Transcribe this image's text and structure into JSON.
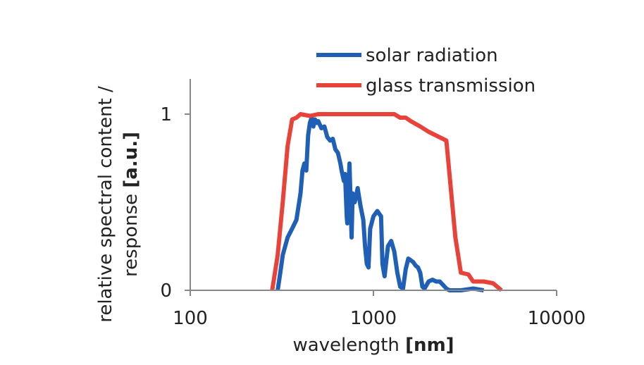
{
  "chart_data": {
    "type": "line",
    "title": "",
    "xlabel": "wavelength",
    "xlabel_unit": "[nm]",
    "ylabel": "relative spectral content /",
    "ylabel_line2": "response",
    "ylabel_unit": "[a.u.]",
    "xscale": "log",
    "xlim": [
      100,
      10000
    ],
    "ylim": [
      0,
      1.2
    ],
    "x_ticks": [
      "100",
      "1000",
      "10000"
    ],
    "y_ticks": [
      "0",
      "1"
    ],
    "grid": false,
    "legend_position": "top",
    "series": [
      {
        "name": "solar radiation",
        "color": "#1f5fb5",
        "points": [
          [
            300,
            0.0
          ],
          [
            310,
            0.1
          ],
          [
            320,
            0.2
          ],
          [
            340,
            0.3
          ],
          [
            360,
            0.35
          ],
          [
            380,
            0.4
          ],
          [
            400,
            0.55
          ],
          [
            410,
            0.68
          ],
          [
            420,
            0.72
          ],
          [
            430,
            0.68
          ],
          [
            440,
            0.88
          ],
          [
            450,
            0.95
          ],
          [
            460,
            0.98
          ],
          [
            470,
            0.93
          ],
          [
            480,
            0.97
          ],
          [
            490,
            0.95
          ],
          [
            500,
            0.96
          ],
          [
            520,
            0.92
          ],
          [
            540,
            0.93
          ],
          [
            560,
            0.87
          ],
          [
            580,
            0.85
          ],
          [
            600,
            0.86
          ],
          [
            620,
            0.8
          ],
          [
            640,
            0.78
          ],
          [
            660,
            0.72
          ],
          [
            670,
            0.68
          ],
          [
            690,
            0.62
          ],
          [
            700,
            0.66
          ],
          [
            715,
            0.42
          ],
          [
            720,
            0.38
          ],
          [
            730,
            0.57
          ],
          [
            740,
            0.72
          ],
          [
            760,
            0.3
          ],
          [
            770,
            0.55
          ],
          [
            790,
            0.5
          ],
          [
            810,
            0.55
          ],
          [
            820,
            0.58
          ],
          [
            850,
            0.48
          ],
          [
            880,
            0.4
          ],
          [
            900,
            0.25
          ],
          [
            920,
            0.15
          ],
          [
            940,
            0.13
          ],
          [
            960,
            0.35
          ],
          [
            1000,
            0.42
          ],
          [
            1050,
            0.45
          ],
          [
            1100,
            0.42
          ],
          [
            1120,
            0.15
          ],
          [
            1150,
            0.08
          ],
          [
            1200,
            0.25
          ],
          [
            1250,
            0.28
          ],
          [
            1300,
            0.22
          ],
          [
            1350,
            0.1
          ],
          [
            1400,
            0.02
          ],
          [
            1450,
            0.01
          ],
          [
            1500,
            0.12
          ],
          [
            1550,
            0.18
          ],
          [
            1600,
            0.17
          ],
          [
            1650,
            0.16
          ],
          [
            1700,
            0.14
          ],
          [
            1750,
            0.13
          ],
          [
            1800,
            0.1
          ],
          [
            1850,
            0.02
          ],
          [
            1900,
            0.01
          ],
          [
            1950,
            0.03
          ],
          [
            2000,
            0.05
          ],
          [
            2100,
            0.06
          ],
          [
            2200,
            0.05
          ],
          [
            2300,
            0.05
          ],
          [
            2400,
            0.03
          ],
          [
            2500,
            0.01
          ],
          [
            2600,
            0.0
          ],
          [
            3000,
            0.0
          ],
          [
            3500,
            0.01
          ],
          [
            4000,
            0.0
          ]
        ]
      },
      {
        "name": "glass transmission",
        "color": "#e8433a",
        "points": [
          [
            280,
            0.0
          ],
          [
            300,
            0.2
          ],
          [
            320,
            0.5
          ],
          [
            340,
            0.82
          ],
          [
            360,
            0.97
          ],
          [
            380,
            0.98
          ],
          [
            400,
            1.0
          ],
          [
            450,
            0.99
          ],
          [
            500,
            1.0
          ],
          [
            700,
            1.0
          ],
          [
            1000,
            1.0
          ],
          [
            1300,
            1.0
          ],
          [
            1400,
            0.98
          ],
          [
            1500,
            0.98
          ],
          [
            1600,
            0.96
          ],
          [
            1800,
            0.93
          ],
          [
            2000,
            0.9
          ],
          [
            2500,
            0.85
          ],
          [
            2800,
            0.3
          ],
          [
            3000,
            0.1
          ],
          [
            3300,
            0.09
          ],
          [
            3500,
            0.05
          ],
          [
            4000,
            0.05
          ],
          [
            4500,
            0.04
          ],
          [
            5000,
            0.0
          ]
        ]
      }
    ]
  }
}
